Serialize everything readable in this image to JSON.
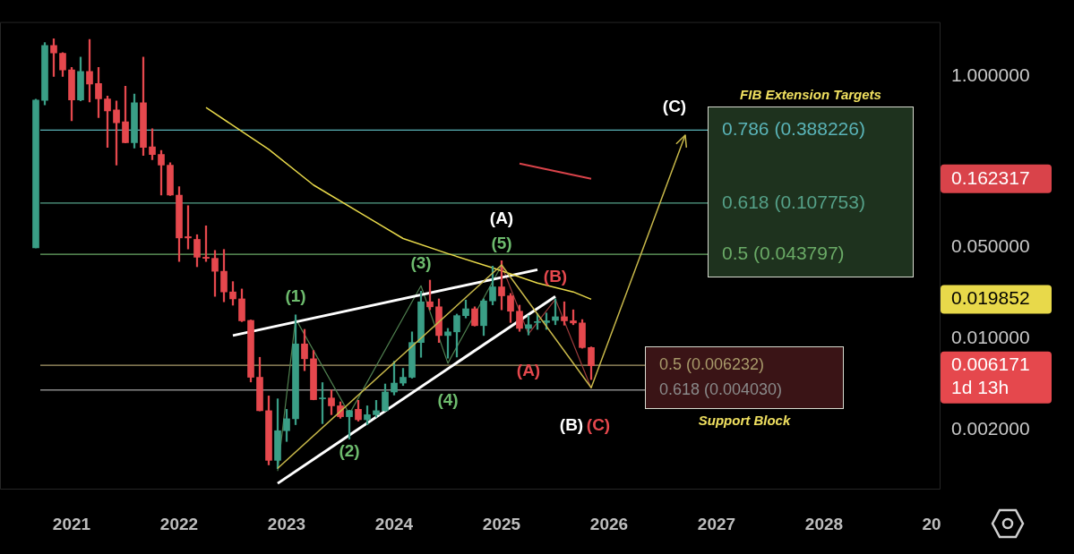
{
  "chart_data": {
    "type": "candlestick",
    "log": true,
    "grid": false,
    "legend": false,
    "x": [
      "2020-09",
      "2020-10",
      "2020-11",
      "2020-12",
      "2021-01",
      "2021-02",
      "2021-03",
      "2021-04",
      "2021-05",
      "2021-06",
      "2021-07",
      "2021-08",
      "2021-09",
      "2021-10",
      "2021-11",
      "2021-12",
      "2022-01",
      "2022-02",
      "2022-03",
      "2022-04",
      "2022-05",
      "2022-06",
      "2022-07",
      "2022-08",
      "2022-09",
      "2022-10",
      "2022-11",
      "2022-12",
      "2023-01",
      "2023-02",
      "2023-03",
      "2023-04",
      "2023-05",
      "2023-06",
      "2023-07",
      "2023-08",
      "2023-09",
      "2023-10",
      "2023-11",
      "2023-12",
      "2024-01",
      "2024-02",
      "2024-03",
      "2024-04",
      "2024-05",
      "2024-06",
      "2024-07",
      "2024-08",
      "2024-09",
      "2024-10",
      "2024-11",
      "2024-12",
      "2025-01",
      "2025-02",
      "2025-03",
      "2025-04",
      "2025-05",
      "2025-06",
      "2025-07",
      "2025-08",
      "2025-09",
      "2025-10",
      "2025-11"
    ],
    "ohlc": [
      [
        0.049,
        0.67,
        0.049,
        0.66
      ],
      [
        0.655,
        1.81,
        0.606,
        1.72
      ],
      [
        1.72,
        1.94,
        1.0,
        1.51
      ],
      [
        1.5,
        1.52,
        1.0,
        1.12
      ],
      [
        1.12,
        1.17,
        0.459,
        0.66
      ],
      [
        0.66,
        1.4,
        0.65,
        1.09
      ],
      [
        1.09,
        1.91,
        0.638,
        0.873
      ],
      [
        0.88,
        1.17,
        0.484,
        0.673
      ],
      [
        0.673,
        0.708,
        0.287,
        0.545
      ],
      [
        0.554,
        0.648,
        0.21,
        0.443
      ],
      [
        0.45,
        0.842,
        0.31,
        0.312
      ],
      [
        0.312,
        0.734,
        0.284,
        0.628
      ],
      [
        0.628,
        1.4,
        0.249,
        0.287
      ],
      [
        0.29,
        0.399,
        0.231,
        0.253
      ],
      [
        0.253,
        0.272,
        0.124,
        0.21
      ],
      [
        0.21,
        0.219,
        0.123,
        0.124
      ],
      [
        0.124,
        0.144,
        0.0386,
        0.0584
      ],
      [
        0.0597,
        0.103,
        0.0481,
        0.0584
      ],
      [
        0.0569,
        0.0618,
        0.0352,
        0.0416
      ],
      [
        0.0416,
        0.0723,
        0.0386,
        0.0408
      ],
      [
        0.0408,
        0.0469,
        0.0209,
        0.0325
      ],
      [
        0.0325,
        0.0477,
        0.019,
        0.0226
      ],
      [
        0.0226,
        0.0271,
        0.0179,
        0.02
      ],
      [
        0.02,
        0.0238,
        0.0134,
        0.0136
      ],
      [
        0.0137,
        0.0138,
        0.00464,
        0.00504
      ],
      [
        0.00504,
        0.00716,
        0.00279,
        0.0028
      ],
      [
        0.0028,
        0.00363,
        0.00108,
        0.00117
      ],
      [
        0.00117,
        0.00345,
        0.00101,
        0.00197
      ],
      [
        0.00197,
        0.00287,
        0.00163,
        0.00243
      ],
      [
        0.00243,
        0.0151,
        0.00219,
        0.00906
      ],
      [
        0.00906,
        0.0117,
        0.00566,
        0.00698
      ],
      [
        0.00698,
        0.00807,
        0.00339,
        0.0034
      ],
      [
        0.00345,
        0.00459,
        0.00223,
        0.0035
      ],
      [
        0.0035,
        0.00403,
        0.00261,
        0.00305
      ],
      [
        0.00305,
        0.00327,
        0.00245,
        0.00252
      ],
      [
        0.00252,
        0.00282,
        0.0017,
        0.0028
      ],
      [
        0.00287,
        0.00336,
        0.00233,
        0.00239
      ],
      [
        0.00239,
        0.00305,
        0.00219,
        0.00261
      ],
      [
        0.00261,
        0.00336,
        0.0025,
        0.0028
      ],
      [
        0.0028,
        0.00448,
        0.00278,
        0.00389
      ],
      [
        0.00389,
        0.00668,
        0.00369,
        0.00455
      ],
      [
        0.00455,
        0.0059,
        0.00436,
        0.00504
      ],
      [
        0.00504,
        0.0112,
        0.00496,
        0.00929
      ],
      [
        0.00929,
        0.0229,
        0.00716,
        0.019
      ],
      [
        0.019,
        0.0278,
        0.0165,
        0.0174
      ],
      [
        0.0174,
        0.02,
        0.00929,
        0.0105
      ],
      [
        0.0105,
        0.0119,
        0.00705,
        0.0112
      ],
      [
        0.0112,
        0.0153,
        0.0072,
        0.0149
      ],
      [
        0.0149,
        0.0196,
        0.0143,
        0.0168
      ],
      [
        0.0168,
        0.0174,
        0.0124,
        0.0125
      ],
      [
        0.0125,
        0.02,
        0.0105,
        0.0193
      ],
      [
        0.0193,
        0.0356,
        0.018,
        0.0247
      ],
      [
        0.0247,
        0.0391,
        0.0165,
        0.0211
      ],
      [
        0.0211,
        0.022,
        0.0132,
        0.0161
      ],
      [
        0.0161,
        0.0179,
        0.0113,
        0.0119
      ],
      [
        0.0119,
        0.0149,
        0.0106,
        0.0127
      ],
      [
        0.0132,
        0.0154,
        0.0117,
        0.0134
      ],
      [
        0.0132,
        0.0156,
        0.0117,
        0.0136
      ],
      [
        0.0137,
        0.02,
        0.0127,
        0.0146
      ],
      [
        0.0146,
        0.019,
        0.0126,
        0.0136
      ],
      [
        0.0136,
        0.0165,
        0.0127,
        0.0131
      ],
      [
        0.0131,
        0.0139,
        0.0084,
        0.0085
      ],
      [
        0.0085,
        0.0086,
        0.00484,
        0.006171
      ]
    ],
    "series": [
      {
        "type": "line",
        "color": "#e8d94a",
        "x": [
          "2022-04",
          "2022-11",
          "2023-04",
          "2023-09",
          "2024-02",
          "2024-07",
          "2024-12",
          "2025-05",
          "2025-09",
          "2025-11"
        ],
        "values": [
          0.578,
          0.277,
          0.148,
          0.0925,
          0.0578,
          0.0443,
          0.0345,
          0.0264,
          0.0226,
          0.019852
        ]
      },
      {
        "type": "line",
        "color": "#ffffff",
        "x": [
          "2022-07",
          "2025-05"
        ],
        "values": [
          0.0105,
          0.0334
        ]
      },
      {
        "type": "line",
        "color": "#ffffff",
        "x": [
          "2022-12",
          "2025-07"
        ],
        "values": [
          0.00078,
          0.0209
        ]
      },
      {
        "type": "line",
        "color": "#4f7f4f",
        "x": [
          "2022-12",
          "2023-02",
          "2023-08",
          "2024-04",
          "2024-07",
          "2025-01"
        ],
        "values": [
          0.00097,
          0.0141,
          0.00264,
          0.0252,
          0.00645,
          0.0361
        ]
      },
      {
        "type": "line",
        "color": "#9a3b3b",
        "x": [
          "2025-01",
          "2025-04",
          "2025-07",
          "2025-11"
        ],
        "values": [
          0.036,
          0.0108,
          0.0199,
          0.00416
        ]
      },
      {
        "type": "line",
        "color": "#d9434a",
        "x": [
          "2025-03",
          "2025-11"
        ],
        "values": [
          0.216,
          0.165
        ]
      }
    ],
    "xlim": [
      "2020-05",
      "2029-02"
    ],
    "xticks": [
      {
        "value": "2021",
        "label": "2021"
      },
      {
        "value": "2022",
        "label": "2022"
      },
      {
        "value": "2023",
        "label": "2023"
      },
      {
        "value": "2024",
        "label": "2024"
      },
      {
        "value": "2025",
        "label": "2025"
      },
      {
        "value": "2026",
        "label": "2026"
      },
      {
        "value": "2027",
        "label": "2027"
      },
      {
        "value": "2028",
        "label": "2028"
      },
      {
        "value": "2029",
        "label": "20"
      }
    ],
    "ylim": [
      0.0007,
      2.6
    ],
    "yticks": [
      {
        "value": 1,
        "label": "1.000000"
      },
      {
        "value": 0.05,
        "label": "0.050000"
      },
      {
        "value": 0.01,
        "label": "0.010000"
      },
      {
        "value": 0.002,
        "label": "0.002000"
      }
    ],
    "ref_lines": [
      {
        "axis": "y",
        "value": 0.388226,
        "label": "0.786 (0.388226)",
        "color": "#5ab4b8"
      },
      {
        "axis": "y",
        "value": 0.107753,
        "label": "0.618 (0.107753)",
        "color": "#55a088"
      },
      {
        "axis": "y",
        "value": 0.043797,
        "label": "0.5 (0.043797)",
        "color": "#6aaa66"
      },
      {
        "axis": "y",
        "value": 0.006232,
        "label": "0.5 (0.006232)",
        "color": "#a89a6a"
      },
      {
        "axis": "y",
        "value": 0.00403,
        "label": "0.618 (0.004030)",
        "color": "#8a8a8a"
      }
    ],
    "annotations": [
      {
        "text": "(1)",
        "x": "2023-02",
        "y": 0.0141
      },
      {
        "text": "(2)",
        "x": "2023-08",
        "y": 0.00264
      },
      {
        "text": "(3)",
        "x": "2024-04",
        "y": 0.0252
      },
      {
        "text": "(4)",
        "x": "2024-07",
        "y": 0.00645
      },
      {
        "text": "(5)",
        "x": "2025-01",
        "y": 0.0361
      },
      {
        "text": "(A)",
        "x": "2025-01",
        "y": 0.0361
      },
      {
        "text": "(B)",
        "x": "2025-07",
        "y": 0.0199
      },
      {
        "text": "(A)",
        "x": "2025-04",
        "y": 0.0108
      },
      {
        "text": "(B)",
        "x": "2025-11",
        "y": 0.00416
      },
      {
        "text": "(C)",
        "x": "2025-11",
        "y": 0.00416
      },
      "(C)",
      "FIB Extension Targets",
      "Support Block",
      "0.162317",
      "0.019852",
      "0.006171\n1d 13h"
    ]
  }
}
